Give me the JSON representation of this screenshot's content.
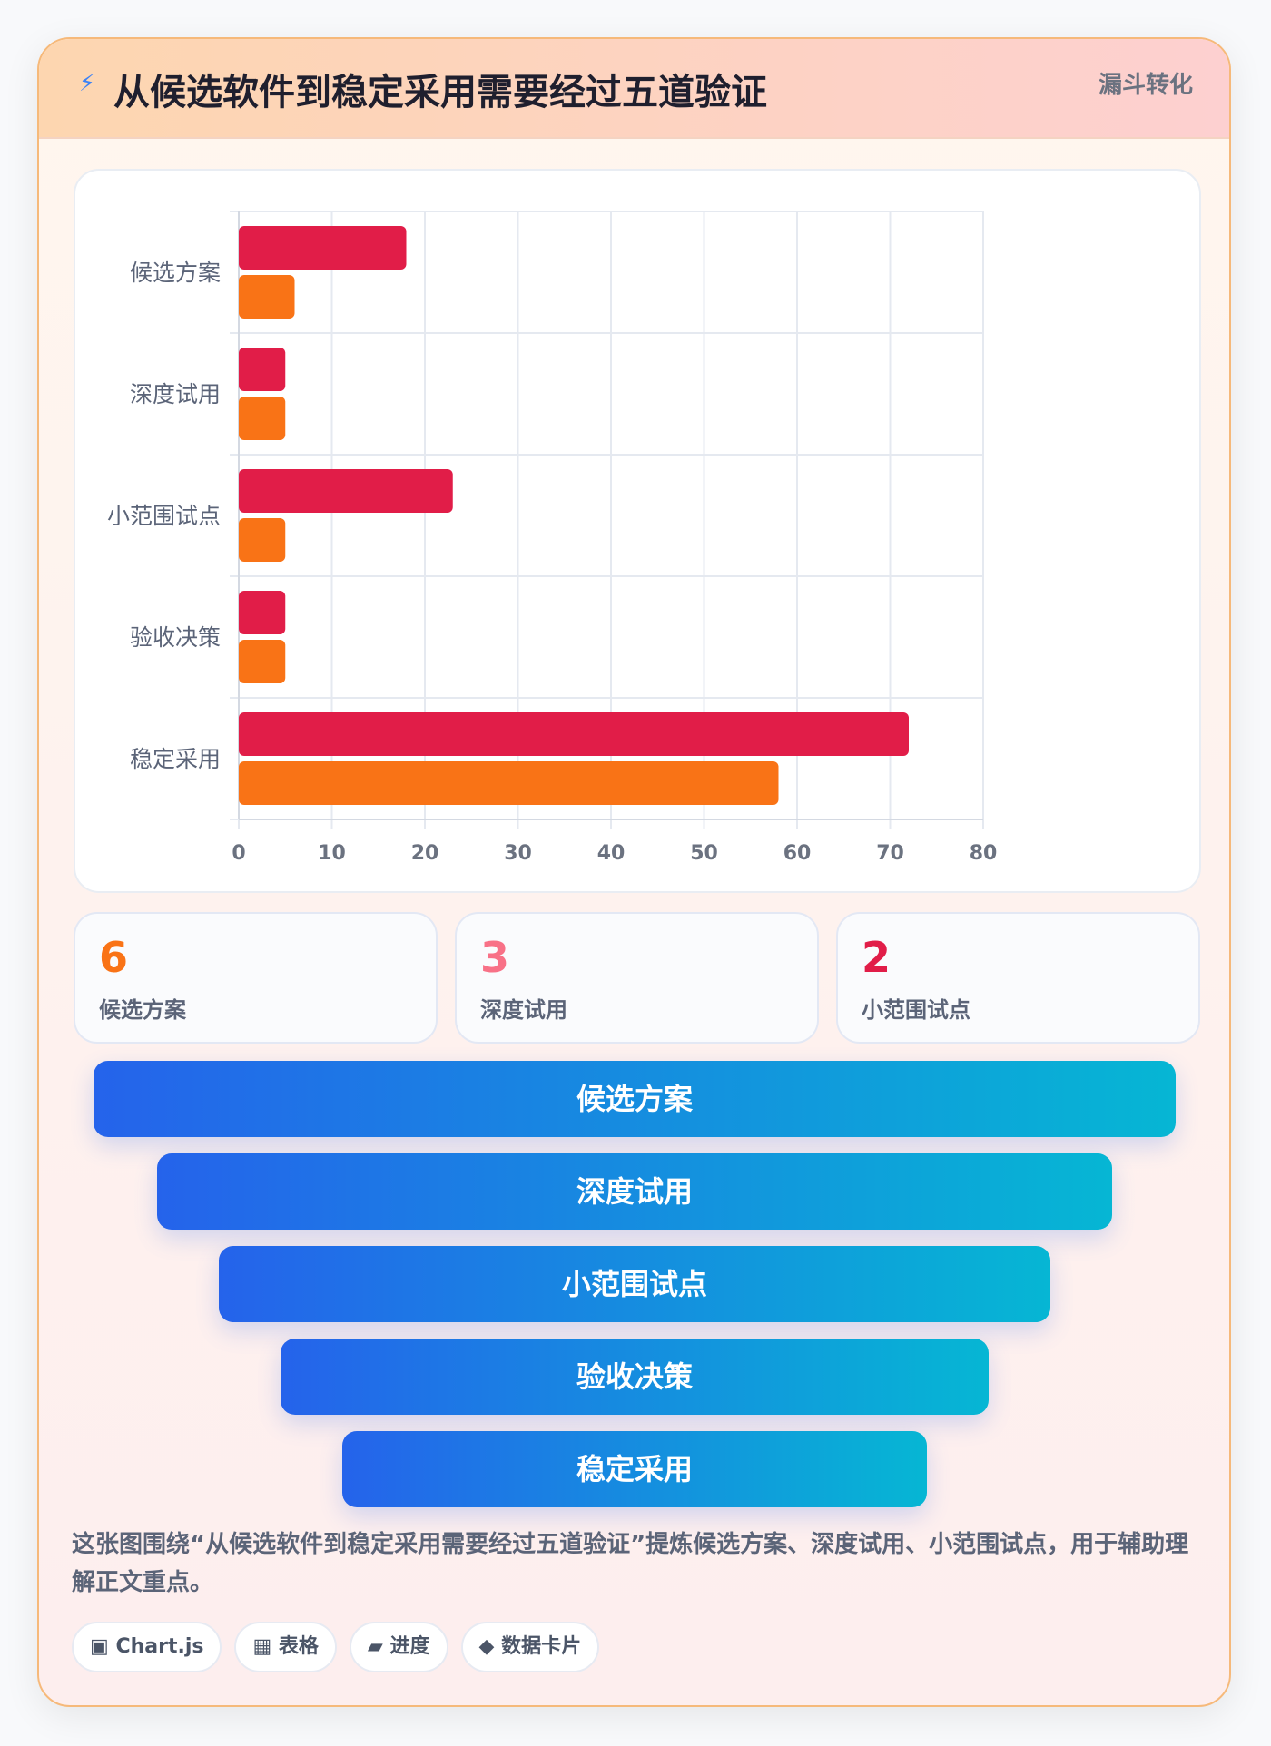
{
  "header": {
    "icon": "bolt-icon",
    "title": "从候选软件到稳定采用需要经过五道验证",
    "tag": "漏斗转化"
  },
  "chart_data": {
    "type": "bar",
    "orientation": "horizontal",
    "categories": [
      "候选方案",
      "深度试用",
      "小范围试点",
      "验收决策",
      "稳定采用"
    ],
    "series": [
      {
        "values": [
          18,
          5,
          23,
          5,
          72
        ],
        "color": "#e11d48"
      },
      {
        "values": [
          6,
          5,
          5,
          5,
          58
        ],
        "color": "#f97316"
      }
    ],
    "xlim": [
      0,
      80
    ],
    "xticks": [
      "0",
      "10",
      "20",
      "30",
      "40",
      "50",
      "60",
      "70",
      "80"
    ],
    "grid": true,
    "legend": "none"
  },
  "stats": [
    {
      "value": "6",
      "label": "候选方案",
      "color": "#f97316"
    },
    {
      "value": "3",
      "label": "深度试用",
      "color": "#f87187"
    },
    {
      "value": "2",
      "label": "小范围试点",
      "color": "#e11d48"
    }
  ],
  "funnel": [
    "候选方案",
    "深度试用",
    "小范围试点",
    "验收决策",
    "稳定采用"
  ],
  "summary": "这张图围绕“从候选软件到稳定采用需要经过五道验证”提炼候选方案、深度试用、小范围试点，用于辅助理解正文重点。",
  "chips": [
    {
      "icon": "chart-icon",
      "label": "▣ Chart.js"
    },
    {
      "icon": "table-icon",
      "label": "▦ 表格"
    },
    {
      "icon": "progress-icon",
      "label": "▰ 进度"
    },
    {
      "icon": "data-card-icon",
      "label": "◆ 数据卡片"
    }
  ]
}
